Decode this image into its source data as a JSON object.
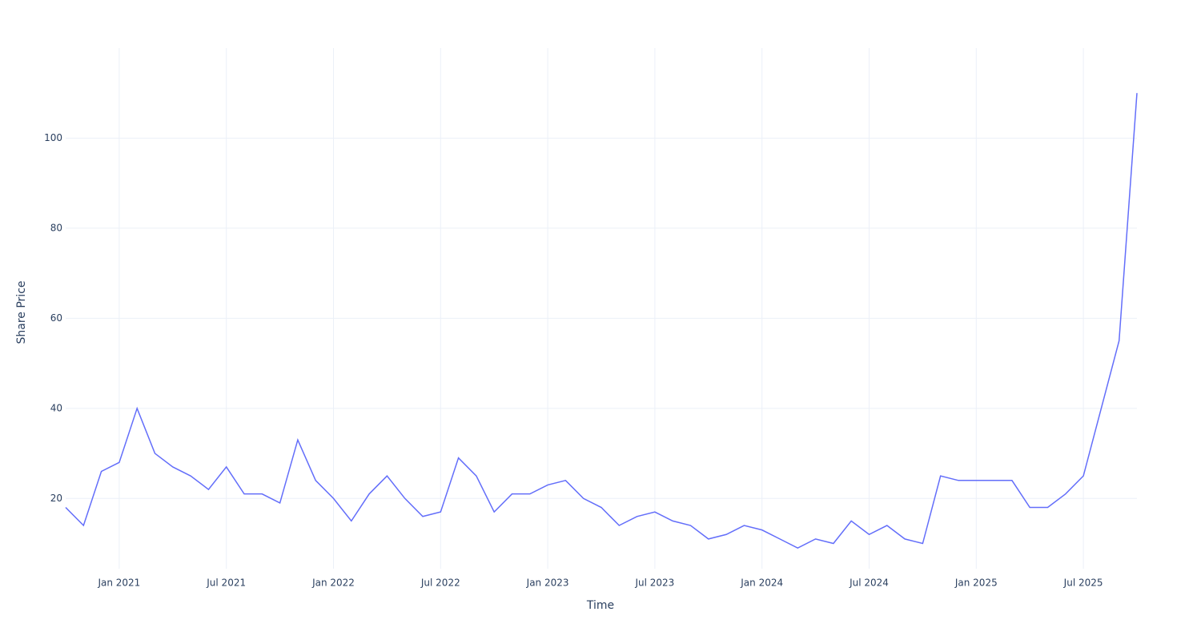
{
  "chart_data": {
    "type": "line",
    "x_label": "Time",
    "y_label": "Share Price",
    "x": [
      "2020-10",
      "2020-11",
      "2020-12",
      "2021-01",
      "2021-02",
      "2021-03",
      "2021-04",
      "2021-05",
      "2021-06",
      "2021-07",
      "2021-08",
      "2021-09",
      "2021-10",
      "2021-11",
      "2021-12",
      "2022-01",
      "2022-02",
      "2022-03",
      "2022-04",
      "2022-05",
      "2022-06",
      "2022-07",
      "2022-08",
      "2022-09",
      "2022-10",
      "2022-11",
      "2022-12",
      "2023-01",
      "2023-02",
      "2023-03",
      "2023-04",
      "2023-05",
      "2023-06",
      "2023-07",
      "2023-08",
      "2023-09",
      "2023-10",
      "2023-11",
      "2023-12",
      "2024-01",
      "2024-02",
      "2024-03",
      "2024-04",
      "2024-05",
      "2024-06",
      "2024-07",
      "2024-08",
      "2024-09",
      "2024-10",
      "2024-11",
      "2024-12",
      "2025-01",
      "2025-02",
      "2025-03",
      "2025-04",
      "2025-05",
      "2025-06",
      "2025-07",
      "2025-08",
      "2025-09",
      "2025-10"
    ],
    "series": [
      {
        "color": "#636efa",
        "values": [
          18,
          14,
          26,
          28,
          40,
          30,
          27,
          25,
          22,
          27,
          21,
          21,
          19,
          33,
          24,
          20,
          15,
          21,
          25,
          20,
          16,
          17,
          29,
          25,
          17,
          21,
          21,
          23,
          24,
          20,
          18,
          14,
          16,
          17,
          15,
          14,
          11,
          12,
          14,
          13,
          11,
          9,
          11,
          10,
          15,
          12,
          14,
          11,
          10,
          25,
          24,
          24,
          24,
          24,
          18,
          18,
          21,
          25,
          40,
          55,
          110
        ]
      }
    ],
    "xlim": [
      "2020-10",
      "2025-10"
    ],
    "xticks": [
      {
        "value": "2021-01",
        "label": "Jan 2021"
      },
      {
        "value": "2021-07",
        "label": "Jul 2021"
      },
      {
        "value": "2022-01",
        "label": "Jan 2022"
      },
      {
        "value": "2022-07",
        "label": "Jul 2022"
      },
      {
        "value": "2023-01",
        "label": "Jan 2023"
      },
      {
        "value": "2023-07",
        "label": "Jul 2023"
      },
      {
        "value": "2024-01",
        "label": "Jan 2024"
      },
      {
        "value": "2024-07",
        "label": "Jul 2024"
      },
      {
        "value": "2025-01",
        "label": "Jan 2025"
      },
      {
        "value": "2025-07",
        "label": "Jul 2025"
      }
    ],
    "ylim": [
      4.4,
      120
    ],
    "yticks": [
      20,
      40,
      60,
      80,
      100
    ],
    "grid": true
  }
}
